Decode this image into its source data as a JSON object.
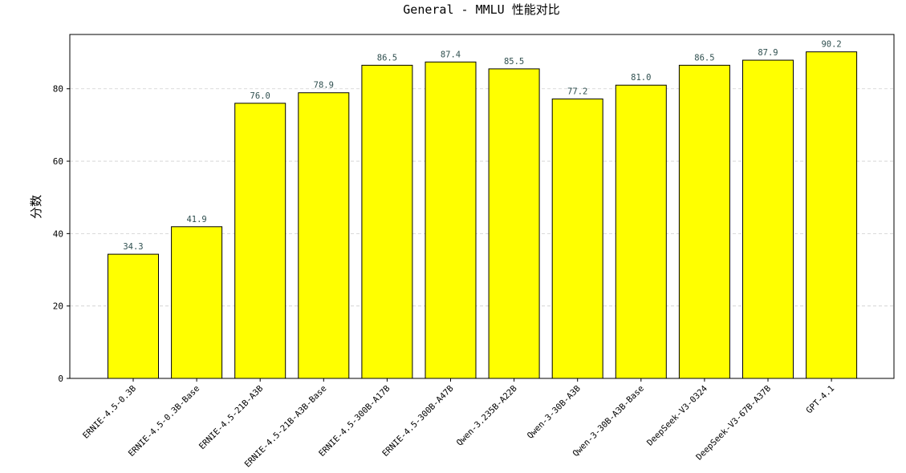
{
  "chart_data": {
    "type": "bar",
    "title": "General - MMLU 性能对比",
    "xlabel": "",
    "ylabel": "分数",
    "ylim": [
      0,
      95
    ],
    "yticks": [
      0,
      20,
      40,
      60,
      80
    ],
    "grid": "y-dashed",
    "bar_color": "#ffff00",
    "edge_color": "#000000",
    "label_color": "#2f4f4f",
    "categories": [
      "ERNIE-4.5-0.3B",
      "ERNIE-4.5-0.3B-Base",
      "ERNIE-4.5-21B-A3B",
      "ERNIE-4.5-21B-A3B-Base",
      "ERNIE-4.5-300B-A17B",
      "ERNIE-4.5-300B-A47B",
      "Qwen-3.235B-A22B",
      "Qwen-3-30B-A3B",
      "Qwen-3-30B-A3B-Base",
      "DeepSeek-V3-0324",
      "DeepSeek-V3-67B-A37B",
      "GPT-4.1"
    ],
    "values": [
      34.3,
      41.9,
      76.0,
      78.9,
      86.5,
      87.4,
      85.5,
      77.2,
      81.0,
      86.5,
      87.9,
      90.2
    ],
    "value_labels": [
      "34.3",
      "41.9",
      "76.0",
      "78.9",
      "86.5",
      "87.4",
      "85.5",
      "77.2",
      "81.0",
      "86.5",
      "87.9",
      "90.2"
    ]
  }
}
